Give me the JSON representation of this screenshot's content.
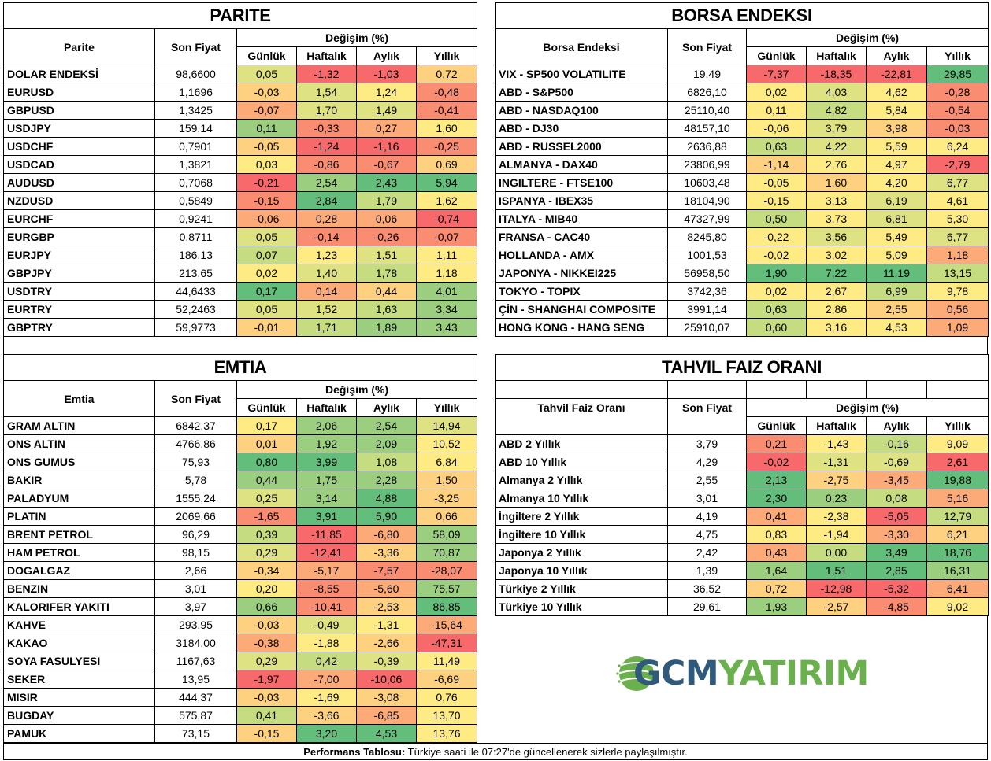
{
  "colors": {
    "strong_red": "#f8696b",
    "red": "#fa8c71",
    "orange": "#fcaa78",
    "light_orange": "#fdd17f",
    "yellow": "#ffeb84",
    "yellow_green": "#dee283",
    "light_green": "#c6dc80",
    "green": "#9bce7e",
    "strong_green": "#63be7b",
    "logo_blue": "#2f5a7c",
    "logo_green": "#6ab04c"
  },
  "change_header": "Değişim (%)",
  "periods": [
    "Günlük",
    "Haftalık",
    "Aylık",
    "Yıllık"
  ],
  "price_header": "Son Fiyat",
  "parite": {
    "title": "PARITE",
    "name_header": "Parite",
    "rows": [
      {
        "name": "DOLAR ENDEKSİ",
        "price": "98,6600",
        "d": "0,05",
        "w": "-1,32",
        "m": "-1,03",
        "y": "0,72",
        "c": [
          "yellow_green",
          "strong_red",
          "strong_red",
          "light_orange"
        ]
      },
      {
        "name": "EURUSD",
        "price": "1,1696",
        "d": "-0,03",
        "w": "1,54",
        "m": "1,24",
        "y": "-0,48",
        "c": [
          "light_orange",
          "yellow_green",
          "yellow",
          "red"
        ]
      },
      {
        "name": "GBPUSD",
        "price": "1,3425",
        "d": "-0,07",
        "w": "1,70",
        "m": "1,49",
        "y": "-0,41",
        "c": [
          "orange",
          "yellow_green",
          "yellow_green",
          "red"
        ]
      },
      {
        "name": "USDJPY",
        "price": "159,14",
        "d": "0,11",
        "w": "-0,33",
        "m": "0,27",
        "y": "1,60",
        "c": [
          "green",
          "red",
          "orange",
          "yellow"
        ]
      },
      {
        "name": "USDCHF",
        "price": "0,7901",
        "d": "-0,05",
        "w": "-1,24",
        "m": "-1,16",
        "y": "-0,25",
        "c": [
          "light_orange",
          "strong_red",
          "strong_red",
          "red"
        ]
      },
      {
        "name": "USDCAD",
        "price": "1,3821",
        "d": "0,03",
        "w": "-0,86",
        "m": "-0,67",
        "y": "0,69",
        "c": [
          "yellow",
          "red",
          "red",
          "light_orange"
        ]
      },
      {
        "name": "AUDUSD",
        "price": "0,7068",
        "d": "-0,21",
        "w": "2,54",
        "m": "2,43",
        "y": "5,94",
        "c": [
          "strong_red",
          "green",
          "strong_green",
          "strong_green"
        ]
      },
      {
        "name": "NZDUSD",
        "price": "0,5849",
        "d": "-0,15",
        "w": "2,84",
        "m": "1,79",
        "y": "1,62",
        "c": [
          "red",
          "strong_green",
          "light_green",
          "yellow"
        ]
      },
      {
        "name": "EURCHF",
        "price": "0,9241",
        "d": "-0,06",
        "w": "0,28",
        "m": "0,06",
        "y": "-0,74",
        "c": [
          "orange",
          "orange",
          "orange",
          "strong_red"
        ]
      },
      {
        "name": "EURGBP",
        "price": "0,8711",
        "d": "0,05",
        "w": "-0,14",
        "m": "-0,26",
        "y": "-0,07",
        "c": [
          "yellow_green",
          "red",
          "red",
          "red"
        ]
      },
      {
        "name": "EURJPY",
        "price": "186,13",
        "d": "0,07",
        "w": "1,23",
        "m": "1,51",
        "y": "1,11",
        "c": [
          "light_green",
          "yellow",
          "yellow_green",
          "yellow"
        ]
      },
      {
        "name": "GBPJPY",
        "price": "213,65",
        "d": "0,02",
        "w": "1,40",
        "m": "1,78",
        "y": "1,18",
        "c": [
          "yellow",
          "yellow_green",
          "light_green",
          "yellow"
        ]
      },
      {
        "name": "USDTRY",
        "price": "44,6433",
        "d": "0,17",
        "w": "0,14",
        "m": "0,44",
        "y": "4,01",
        "c": [
          "strong_green",
          "orange",
          "light_orange",
          "green"
        ]
      },
      {
        "name": "EURTRY",
        "price": "52,2463",
        "d": "0,05",
        "w": "1,52",
        "m": "1,63",
        "y": "3,34",
        "c": [
          "yellow_green",
          "yellow_green",
          "light_green",
          "green"
        ]
      },
      {
        "name": "GBPTRY",
        "price": "59,9773",
        "d": "-0,01",
        "w": "1,71",
        "m": "1,89",
        "y": "3,43",
        "c": [
          "light_orange",
          "light_green",
          "green",
          "green"
        ]
      }
    ]
  },
  "borsa": {
    "title": "BORSA ENDEKSI",
    "name_header": "Borsa Endeksi",
    "rows": [
      {
        "name": "VIX  - SP500 VOLATILITE",
        "price": "19,49",
        "d": "-7,37",
        "w": "-18,35",
        "m": "-22,81",
        "y": "29,85",
        "c": [
          "strong_red",
          "strong_red",
          "strong_red",
          "strong_green"
        ]
      },
      {
        "name": "ABD - S&P500",
        "price": "6826,10",
        "d": "0,02",
        "w": "4,03",
        "m": "4,62",
        "y": "-0,28",
        "c": [
          "yellow",
          "yellow_green",
          "yellow",
          "red"
        ]
      },
      {
        "name": "ABD - NASDAQ100",
        "price": "25110,40",
        "d": "0,11",
        "w": "4,82",
        "m": "5,84",
        "y": "-0,54",
        "c": [
          "yellow",
          "light_green",
          "yellow",
          "red"
        ]
      },
      {
        "name": "ABD - DJ30",
        "price": "48157,10",
        "d": "-0,06",
        "w": "3,79",
        "m": "3,98",
        "y": "-0,03",
        "c": [
          "yellow",
          "yellow_green",
          "light_orange",
          "red"
        ]
      },
      {
        "name": "ABD - RUSSEL2000",
        "price": "2636,88",
        "d": "0,63",
        "w": "4,22",
        "m": "5,59",
        "y": "6,24",
        "c": [
          "light_green",
          "yellow_green",
          "yellow",
          "yellow"
        ]
      },
      {
        "name": "ALMANYA - DAX40",
        "price": "23806,99",
        "d": "-1,14",
        "w": "2,76",
        "m": "4,97",
        "y": "-2,79",
        "c": [
          "light_orange",
          "yellow",
          "yellow",
          "strong_red"
        ]
      },
      {
        "name": "INGILTERE - FTSE100",
        "price": "10603,48",
        "d": "-0,05",
        "w": "1,60",
        "m": "4,20",
        "y": "6,77",
        "c": [
          "yellow",
          "light_orange",
          "yellow",
          "yellow_green"
        ]
      },
      {
        "name": "ISPANYA - IBEX35",
        "price": "18104,90",
        "d": "-0,15",
        "w": "3,13",
        "m": "6,19",
        "y": "4,61",
        "c": [
          "yellow",
          "yellow",
          "yellow_green",
          "yellow"
        ]
      },
      {
        "name": "ITALYA - MIB40",
        "price": "47327,99",
        "d": "0,50",
        "w": "3,73",
        "m": "6,81",
        "y": "5,30",
        "c": [
          "light_green",
          "yellow",
          "yellow_green",
          "yellow"
        ]
      },
      {
        "name": "FRANSA - CAC40",
        "price": "8245,80",
        "d": "-0,22",
        "w": "3,56",
        "m": "5,49",
        "y": "6,77",
        "c": [
          "yellow",
          "yellow_green",
          "yellow",
          "yellow_green"
        ]
      },
      {
        "name": "HOLLANDA - AMX",
        "price": "1001,53",
        "d": "-0,02",
        "w": "3,02",
        "m": "5,09",
        "y": "1,18",
        "c": [
          "yellow",
          "yellow",
          "yellow",
          "orange"
        ]
      },
      {
        "name": "JAPONYA - NIKKEI225",
        "price": "56958,50",
        "d": "1,90",
        "w": "7,22",
        "m": "11,19",
        "y": "13,15",
        "c": [
          "strong_green",
          "strong_green",
          "strong_green",
          "light_green"
        ]
      },
      {
        "name": "TOKYO - TOPIX",
        "price": "3742,36",
        "d": "0,02",
        "w": "2,67",
        "m": "6,99",
        "y": "9,78",
        "c": [
          "yellow",
          "yellow",
          "light_green",
          "yellow"
        ]
      },
      {
        "name": "ÇİN - SHANGHAI COMPOSITE",
        "price": "3991,14",
        "d": "0,63",
        "w": "2,86",
        "m": "2,55",
        "y": "0,56",
        "c": [
          "light_green",
          "yellow",
          "light_orange",
          "orange"
        ]
      },
      {
        "name": "HONG KONG - HANG SENG",
        "price": "25910,07",
        "d": "0,60",
        "w": "3,16",
        "m": "4,53",
        "y": "1,09",
        "c": [
          "light_green",
          "yellow",
          "yellow",
          "orange"
        ]
      }
    ]
  },
  "emtia": {
    "title": "EMTIA",
    "name_header": "Emtia",
    "rows": [
      {
        "name": "GRAM ALTIN",
        "price": "6842,37",
        "d": "0,17",
        "w": "2,06",
        "m": "2,54",
        "y": "14,94",
        "c": [
          "yellow",
          "green",
          "green",
          "yellow_green"
        ]
      },
      {
        "name": "ONS ALTIN",
        "price": "4766,86",
        "d": "0,01",
        "w": "1,92",
        "m": "2,09",
        "y": "10,52",
        "c": [
          "light_orange",
          "green",
          "green",
          "yellow"
        ]
      },
      {
        "name": "ONS GUMUS",
        "price": "75,93",
        "d": "0,80",
        "w": "3,99",
        "m": "1,08",
        "y": "6,84",
        "c": [
          "strong_green",
          "strong_green",
          "light_green",
          "yellow"
        ]
      },
      {
        "name": "BAKIR",
        "price": "5,78",
        "d": "0,44",
        "w": "1,75",
        "m": "2,28",
        "y": "1,50",
        "c": [
          "green",
          "green",
          "green",
          "light_orange"
        ]
      },
      {
        "name": "PALADYUM",
        "price": "1555,24",
        "d": "0,25",
        "w": "3,14",
        "m": "4,88",
        "y": "-3,25",
        "c": [
          "yellow_green",
          "green",
          "strong_green",
          "light_orange"
        ]
      },
      {
        "name": "PLATIN",
        "price": "2069,66",
        "d": "-1,65",
        "w": "3,91",
        "m": "5,90",
        "y": "0,66",
        "c": [
          "red",
          "strong_green",
          "strong_green",
          "light_orange"
        ]
      },
      {
        "name": "BRENT PETROL",
        "price": "96,29",
        "d": "0,39",
        "w": "-11,85",
        "m": "-6,80",
        "y": "58,09",
        "c": [
          "light_green",
          "strong_red",
          "orange",
          "green"
        ]
      },
      {
        "name": "HAM PETROL",
        "price": "98,15",
        "d": "0,29",
        "w": "-12,41",
        "m": "-3,36",
        "y": "70,87",
        "c": [
          "yellow_green",
          "strong_red",
          "light_orange",
          "green"
        ]
      },
      {
        "name": "DOGALGAZ",
        "price": "2,66",
        "d": "-0,34",
        "w": "-5,17",
        "m": "-7,57",
        "y": "-28,07",
        "c": [
          "light_orange",
          "orange",
          "red",
          "red"
        ]
      },
      {
        "name": "BENZIN",
        "price": "3,01",
        "d": "0,20",
        "w": "-8,55",
        "m": "-5,60",
        "y": "75,57",
        "c": [
          "yellow",
          "red",
          "orange",
          "green"
        ]
      },
      {
        "name": "KALORIFER YAKITI",
        "price": "3,97",
        "d": "0,66",
        "w": "-10,41",
        "m": "-2,53",
        "y": "86,85",
        "c": [
          "green",
          "red",
          "light_orange",
          "strong_green"
        ]
      },
      {
        "name": "KAHVE",
        "price": "293,95",
        "d": "-0,03",
        "w": "-0,49",
        "m": "-1,31",
        "y": "-15,64",
        "c": [
          "light_orange",
          "yellow_green",
          "yellow",
          "orange"
        ]
      },
      {
        "name": "KAKAO",
        "price": "3184,00",
        "d": "-0,38",
        "w": "-1,88",
        "m": "-2,66",
        "y": "-47,31",
        "c": [
          "orange",
          "yellow",
          "light_orange",
          "strong_red"
        ]
      },
      {
        "name": "SOYA FASULYESI",
        "price": "1167,63",
        "d": "0,29",
        "w": "0,42",
        "m": "-0,39",
        "y": "11,49",
        "c": [
          "yellow_green",
          "light_green",
          "yellow_green",
          "yellow"
        ]
      },
      {
        "name": "SEKER",
        "price": "13,95",
        "d": "-1,97",
        "w": "-7,00",
        "m": "-10,06",
        "y": "-6,69",
        "c": [
          "strong_red",
          "orange",
          "strong_red",
          "light_orange"
        ]
      },
      {
        "name": "MISIR",
        "price": "444,37",
        "d": "-0,03",
        "w": "-1,69",
        "m": "-3,08",
        "y": "0,76",
        "c": [
          "light_orange",
          "yellow",
          "light_orange",
          "yellow"
        ]
      },
      {
        "name": "BUGDAY",
        "price": "575,87",
        "d": "0,41",
        "w": "-3,66",
        "m": "-6,85",
        "y": "13,70",
        "c": [
          "light_green",
          "light_orange",
          "orange",
          "yellow"
        ]
      },
      {
        "name": "PAMUK",
        "price": "73,15",
        "d": "-0,15",
        "w": "3,20",
        "m": "4,53",
        "y": "13,76",
        "c": [
          "light_orange",
          "strong_green",
          "strong_green",
          "yellow"
        ]
      }
    ]
  },
  "tahvil": {
    "title": "TAHVIL FAIZ ORANI",
    "name_header": "Tahvil Faiz Oranı",
    "rows": [
      {
        "name": "ABD 2 Yıllık",
        "price": "3,79",
        "d": "0,21",
        "w": "-1,43",
        "m": "-0,16",
        "y": "9,09",
        "c": [
          "red",
          "yellow",
          "light_green",
          "yellow"
        ]
      },
      {
        "name": "ABD 10 Yıllık",
        "price": "4,29",
        "d": "-0,02",
        "w": "-1,31",
        "m": "-0,69",
        "y": "2,61",
        "c": [
          "strong_red",
          "yellow_green",
          "yellow_green",
          "strong_red"
        ]
      },
      {
        "name": "Almanya 2 Yıllık",
        "price": "2,55",
        "d": "2,13",
        "w": "-2,75",
        "m": "-3,45",
        "y": "19,88",
        "c": [
          "strong_green",
          "light_orange",
          "orange",
          "strong_green"
        ]
      },
      {
        "name": "Almanya 10 Yıllık",
        "price": "3,01",
        "d": "2,30",
        "w": "0,23",
        "m": "0,08",
        "y": "5,16",
        "c": [
          "strong_green",
          "green",
          "light_green",
          "orange"
        ]
      },
      {
        "name": "İngiltere 2 Yıllık",
        "price": "4,19",
        "d": "0,41",
        "w": "-2,38",
        "m": "-5,05",
        "y": "12,79",
        "c": [
          "orange",
          "yellow",
          "strong_red",
          "light_green"
        ]
      },
      {
        "name": "İngiltere 10 Yıllık",
        "price": "4,75",
        "d": "0,83",
        "w": "-1,94",
        "m": "-3,30",
        "y": "6,21",
        "c": [
          "yellow",
          "yellow",
          "orange",
          "light_orange"
        ]
      },
      {
        "name": "Japonya 2 Yıllık",
        "price": "2,42",
        "d": "0,43",
        "w": "0,00",
        "m": "3,49",
        "y": "18,76",
        "c": [
          "orange",
          "light_green",
          "strong_green",
          "strong_green"
        ]
      },
      {
        "name": "Japonya 10 Yıllık",
        "price": "1,39",
        "d": "1,64",
        "w": "1,51",
        "m": "2,85",
        "y": "16,31",
        "c": [
          "green",
          "strong_green",
          "strong_green",
          "green"
        ]
      },
      {
        "name": "Türkiye 2 Yıllık",
        "price": "36,52",
        "d": "0,72",
        "w": "-12,98",
        "m": "-5,32",
        "y": "6,41",
        "c": [
          "light_orange",
          "strong_red",
          "strong_red",
          "orange"
        ]
      },
      {
        "name": "Türkiye 10 Yıllık",
        "price": "29,61",
        "d": "1,93",
        "w": "-2,57",
        "m": "-4,85",
        "y": "9,02",
        "c": [
          "green",
          "light_orange",
          "red",
          "yellow"
        ]
      }
    ]
  },
  "logo": {
    "part1": "GCM",
    "part2": "YATIRIM"
  },
  "footer": {
    "label": "Performans Tablosu:",
    "text": " Türkiye saati ile 07:27'de güncellenerek sizlerle paylaşılmıştır."
  }
}
